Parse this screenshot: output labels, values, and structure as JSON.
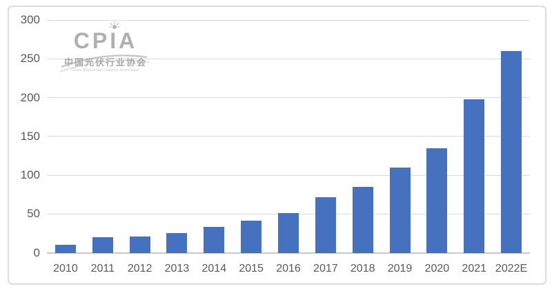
{
  "chart_data": {
    "type": "bar",
    "title": "",
    "xlabel": "",
    "ylabel": "",
    "categories": [
      "2010",
      "2011",
      "2012",
      "2013",
      "2014",
      "2015",
      "2016",
      "2017",
      "2018",
      "2019",
      "2020",
      "2021",
      "2022E"
    ],
    "values": [
      10,
      20,
      21,
      25,
      33,
      41,
      51,
      72,
      85,
      110,
      135,
      198,
      260
    ],
    "ylim": [
      0,
      300
    ],
    "yticks": [
      0,
      50,
      100,
      150,
      200,
      250,
      300
    ],
    "grid": true,
    "legend": "none",
    "bar_color": "#4571bf",
    "axis_label_color": "#595959",
    "gridline_color": "#d9d9d9"
  },
  "logo": {
    "name": "CPIA",
    "chinese": "中国光伏行业协会",
    "english": "China Photovoltaic Industry Association",
    "color": "#b1aeae"
  }
}
